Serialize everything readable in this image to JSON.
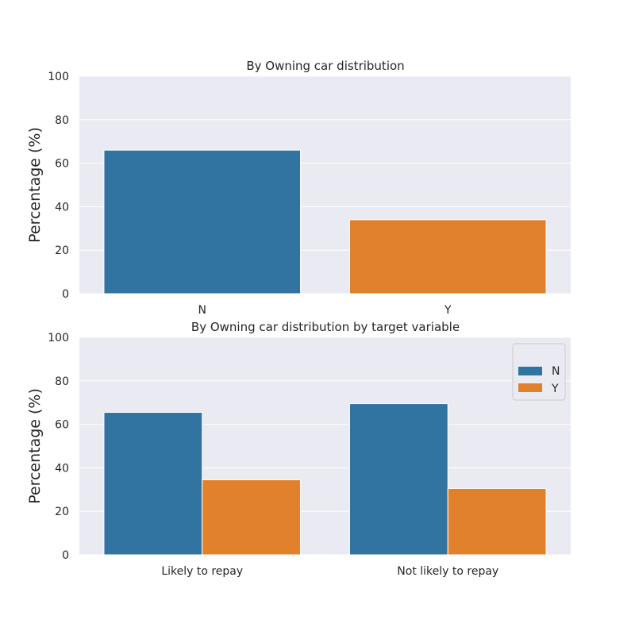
{
  "chart_data": [
    {
      "type": "bar",
      "title": "By Owning car  distribution",
      "xlabel": "",
      "ylabel": "Percentage (%)",
      "ylim": [
        0,
        100
      ],
      "yticks": [
        "0",
        "20",
        "40",
        "60",
        "80",
        "100"
      ],
      "categories": [
        "N",
        "Y"
      ],
      "values": [
        66.0,
        34.0
      ],
      "colors": [
        "#3274a1",
        "#e1812c"
      ],
      "grid": true,
      "legend": null
    },
    {
      "type": "bar",
      "title": "By Owning car  distribution by target variable",
      "xlabel": "",
      "ylabel": "Percentage (%)",
      "ylim": [
        0,
        100
      ],
      "yticks": [
        "0",
        "20",
        "40",
        "60",
        "80",
        "100"
      ],
      "categories": [
        "Likely to repay",
        "Not likely to repay"
      ],
      "series": [
        {
          "name": "N",
          "values": [
            65.5,
            69.5
          ],
          "color": "#3274a1"
        },
        {
          "name": "Y",
          "values": [
            34.5,
            30.5
          ],
          "color": "#e1812c"
        }
      ],
      "grid": true,
      "legend": "top-right"
    }
  ]
}
